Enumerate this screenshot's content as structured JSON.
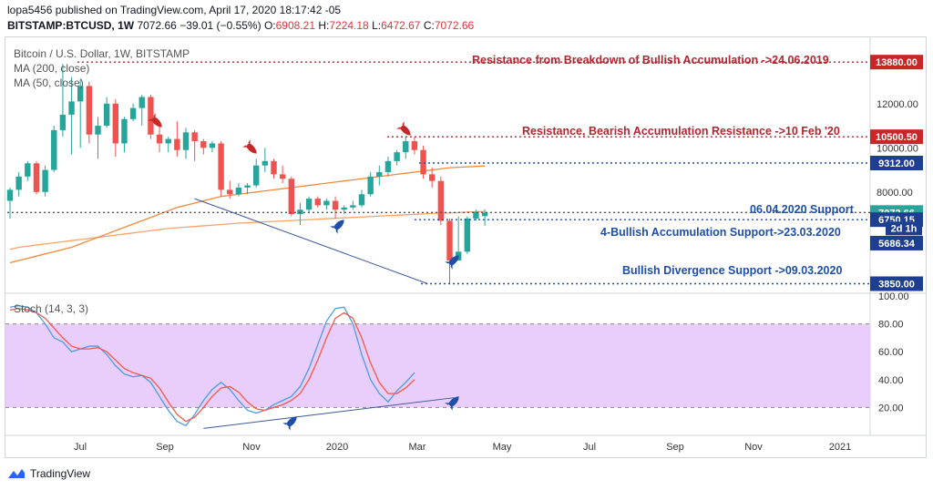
{
  "header": {
    "published_line": "lopa5456 published on TradingView.com, April 17, 2020 18:17:42 -05",
    "symbol": "BITSTAMP:BTCUSD, 1W",
    "last": "7072.66",
    "change": "−39.01 (−0.55%)",
    "o_label": "O:",
    "o": "6908.21",
    "h_label": "H:",
    "h": "7224.18",
    "l_label": "L:",
    "l": "6472.67",
    "c_label": "C:",
    "c": "7072.66"
  },
  "legend": {
    "title": "Bitcoin / U.S. Dollar, 1W, BITSTAMP",
    "ma200": "MA (200, close)",
    "ma50": "MA (50, close)",
    "stoch": "Stoch (14, 3, 3)"
  },
  "annotations": [
    {
      "text": "Resistance  from Breakdown of Bullish Accumulation ->24.06.2019",
      "color": "red"
    },
    {
      "text": "Resistance, Bearish Accumulation Resistance ->10 Feb '20",
      "color": "red"
    },
    {
      "text": "06.04.2020 Support",
      "color": "blue"
    },
    {
      "text": "4-Bullish Accumulation Support->23.03.2020",
      "color": "blue"
    },
    {
      "text": "Bullish Divergence Support ->09.03.2020",
      "color": "blue"
    }
  ],
  "footer": {
    "brand": "TradingView"
  },
  "colors": {
    "up": "#26a69a",
    "down": "#ef5350",
    "ma200": "#f7a36b",
    "ma50": "#f08a3c",
    "stoch_k": "#4a9ee6",
    "stoch_d": "#f15a46",
    "band": "#e9cdfb",
    "label_red": "#c62828",
    "label_navy": "#1d3f8f",
    "label_green": "#26a69a"
  },
  "chart_data": [
    {
      "type": "candlestick",
      "timeframe": "1W",
      "x_tick_labels": [
        "Jul",
        "Sep",
        "Nov",
        "2020",
        "Mar",
        "May",
        "Jul",
        "Sep",
        "Nov",
        "2021"
      ],
      "y_tick_labels": [
        "8000.00",
        "10000.00",
        "12000.00"
      ],
      "ylim": [
        3500,
        15000
      ],
      "candles": [
        [
          7600,
          8200,
          6800,
          8100
        ],
        [
          8100,
          8900,
          7800,
          8700
        ],
        [
          8700,
          9400,
          8500,
          9300
        ],
        [
          9300,
          9400,
          7900,
          8000
        ],
        [
          8000,
          9200,
          7800,
          9000
        ],
        [
          9000,
          11000,
          8900,
          10800
        ],
        [
          10800,
          13800,
          10500,
          11500
        ],
        [
          11500,
          13200,
          9700,
          12100
        ],
        [
          12100,
          13100,
          10000,
          12800
        ],
        [
          12800,
          13000,
          10200,
          10600
        ],
        [
          10600,
          11400,
          9500,
          11000
        ],
        [
          11000,
          12300,
          10900,
          12000
        ],
        [
          12000,
          12200,
          9600,
          10200
        ],
        [
          10200,
          11400,
          9800,
          11300
        ],
        [
          11300,
          12000,
          11200,
          11800
        ],
        [
          11800,
          12400,
          11000,
          12300
        ],
        [
          12300,
          12400,
          10400,
          10600
        ],
        [
          10600,
          11000,
          9800,
          10200
        ],
        [
          10200,
          10500,
          9800,
          10400
        ],
        [
          10400,
          11200,
          9600,
          9900
        ],
        [
          9900,
          10900,
          9500,
          10700
        ],
        [
          10700,
          10800,
          9400,
          10300
        ],
        [
          10300,
          10400,
          9700,
          10000
        ],
        [
          10000,
          10300,
          9800,
          10200
        ],
        [
          10200,
          10300,
          7800,
          8100
        ],
        [
          8100,
          8500,
          7700,
          7900
        ],
        [
          7900,
          8400,
          7800,
          8200
        ],
        [
          8200,
          8400,
          7900,
          8300
        ],
        [
          8300,
          9500,
          8200,
          9200
        ],
        [
          9200,
          10000,
          8900,
          9400
        ],
        [
          9400,
          9500,
          8600,
          8800
        ],
        [
          8800,
          9200,
          8400,
          8600
        ],
        [
          8600,
          8700,
          6900,
          7000
        ],
        [
          7000,
          7500,
          6500,
          7200
        ],
        [
          7200,
          7800,
          7100,
          7700
        ],
        [
          7700,
          7800,
          7300,
          7400
        ],
        [
          7400,
          7700,
          7200,
          7600
        ],
        [
          7600,
          7800,
          6800,
          7200
        ],
        [
          7200,
          7400,
          7000,
          7300
        ],
        [
          7300,
          7600,
          7200,
          7400
        ],
        [
          7400,
          8100,
          7300,
          7900
        ],
        [
          7900,
          8900,
          7800,
          8700
        ],
        [
          8700,
          9200,
          8300,
          8900
        ],
        [
          8900,
          9600,
          8700,
          9400
        ],
        [
          9400,
          9900,
          9200,
          9800
        ],
        [
          9800,
          10500,
          9500,
          10300
        ],
        [
          10300,
          10500,
          9700,
          9900
        ],
        [
          9900,
          10100,
          8600,
          8800
        ],
        [
          8800,
          9100,
          8200,
          8500
        ],
        [
          8500,
          8700,
          6500,
          6700
        ],
        [
          6700,
          6800,
          3850,
          4900
        ],
        [
          4900,
          6900,
          4900,
          5300
        ],
        [
          5300,
          6900,
          5200,
          6800
        ],
        [
          6800,
          7200,
          6700,
          7100
        ],
        [
          6908.21,
          7224.18,
          6472.67,
          7072.66
        ]
      ],
      "series": [
        {
          "name": "MA (200, close)",
          "values": [
            5400,
            5500,
            5550,
            5600,
            5650,
            5700,
            5750,
            5800,
            5850,
            5900,
            5950,
            6000,
            6050,
            6100,
            6150,
            6200,
            6250,
            6300,
            6350,
            6380,
            6410,
            6440,
            6470,
            6500,
            6530,
            6560,
            6590,
            6610,
            6630,
            6650,
            6670,
            6690,
            6710,
            6730,
            6750,
            6770,
            6790,
            6810,
            6830,
            6850,
            6870,
            6890,
            6910,
            6930,
            6950,
            6970,
            6990,
            7010,
            7030,
            7050,
            7050,
            7070,
            7090,
            7110,
            7120
          ]
        },
        {
          "name": "MA (50, close)",
          "values": [
            4800,
            4900,
            5000,
            5100,
            5200,
            5300,
            5400,
            5500,
            5650,
            5800,
            5950,
            6100,
            6250,
            6400,
            6550,
            6700,
            6850,
            7000,
            7150,
            7300,
            7400,
            7500,
            7600,
            7700,
            7800,
            7850,
            7900,
            7950,
            8000,
            8050,
            8100,
            8150,
            8200,
            8250,
            8300,
            8350,
            8400,
            8450,
            8500,
            8550,
            8600,
            8650,
            8700,
            8750,
            8800,
            8850,
            8900,
            8950,
            9000,
            9050,
            9100,
            9120,
            9140,
            9160,
            9180
          ]
        }
      ],
      "price_labels": [
        {
          "value": 13880,
          "text": "13880.00",
          "color": "red"
        },
        {
          "value": 10500.5,
          "text": "10500.50",
          "color": "red"
        },
        {
          "value": 9312,
          "text": "9312.00",
          "color": "navy"
        },
        {
          "value": 7072.66,
          "text": "7072.66",
          "color": "green"
        },
        {
          "value": 6750.15,
          "text": "6750.15",
          "color": "navy"
        },
        {
          "value": 5686.34,
          "text": "5686.34",
          "color": "navy"
        },
        {
          "value": 3850,
          "text": "3850.00",
          "color": "navy"
        }
      ],
      "countdown_label": "2d 1h",
      "horizontal_lines": [
        13880,
        10500.5,
        9312,
        7072.66,
        6750.15,
        3850
      ]
    },
    {
      "type": "line",
      "title": "Stoch (14, 3, 3)",
      "ylim": [
        0,
        100
      ],
      "y_tick_labels": [
        "20.00",
        "40.00",
        "60.00",
        "80.00",
        "100.00"
      ],
      "bands": [
        20,
        80
      ],
      "series": [
        {
          "name": "%K",
          "values": [
            92,
            93,
            92,
            88,
            80,
            70,
            67,
            60,
            62,
            64,
            64,
            58,
            50,
            44,
            42,
            43,
            38,
            28,
            18,
            10,
            7,
            15,
            25,
            33,
            38,
            33,
            25,
            18,
            16,
            18,
            22,
            25,
            28,
            35,
            48,
            65,
            82,
            91,
            92,
            80,
            58,
            40,
            30,
            24,
            32,
            38,
            45
          ]
        },
        {
          "name": "%D",
          "values": [
            90,
            91,
            90,
            88,
            84,
            77,
            70,
            64,
            62,
            62,
            63,
            60,
            54,
            48,
            45,
            43,
            41,
            34,
            24,
            15,
            10,
            13,
            20,
            28,
            34,
            35,
            31,
            24,
            19,
            18,
            20,
            22,
            25,
            30,
            40,
            54,
            70,
            84,
            88,
            84,
            70,
            52,
            38,
            30,
            30,
            34,
            40
          ]
        }
      ]
    }
  ]
}
